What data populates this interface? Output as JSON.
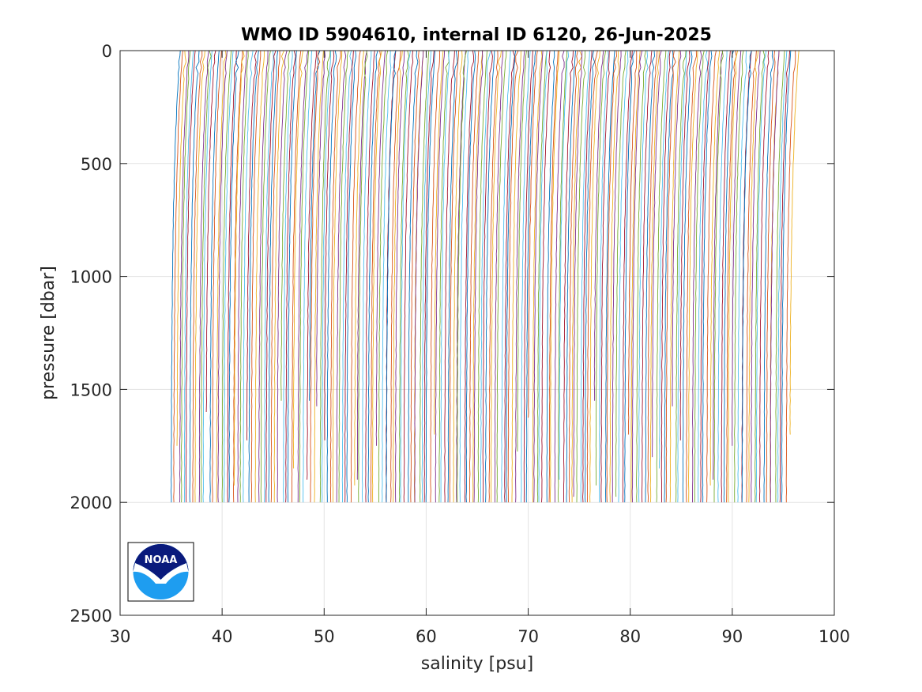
{
  "chart_data": {
    "type": "line",
    "title": "WMO ID 5904610, internal ID 6120, 26-Jun-2025",
    "xlabel": "salinity [psu]",
    "ylabel": "pressure [dbar]",
    "xlim": [
      30,
      100
    ],
    "ylim": [
      0,
      2500
    ],
    "y_reversed": true,
    "grid": true,
    "xticks": [
      30,
      40,
      50,
      60,
      70,
      80,
      90,
      100
    ],
    "yticks": [
      0,
      500,
      1000,
      1500,
      2000,
      2500
    ],
    "xtick_labels": [
      "30",
      "40",
      "50",
      "60",
      "70",
      "80",
      "90",
      "100"
    ],
    "ytick_labels": [
      "0",
      "500",
      "1000",
      "1500",
      "2000",
      "2500"
    ],
    "profile_count": 220,
    "first_profile_surface_salinity": 35.8,
    "last_profile_surface_salinity": 96.4,
    "deep_salinity_offset": -0.9,
    "max_pressure": 2000,
    "line_colors": [
      "#0072BD",
      "#D95319",
      "#EDB120",
      "#7E2F8E",
      "#77AC30",
      "#4DBEEE",
      "#A2142F"
    ]
  },
  "logo": {
    "text": "NOAA",
    "colors": {
      "navy": "#0a1a7c",
      "blue": "#1e9df0"
    }
  }
}
